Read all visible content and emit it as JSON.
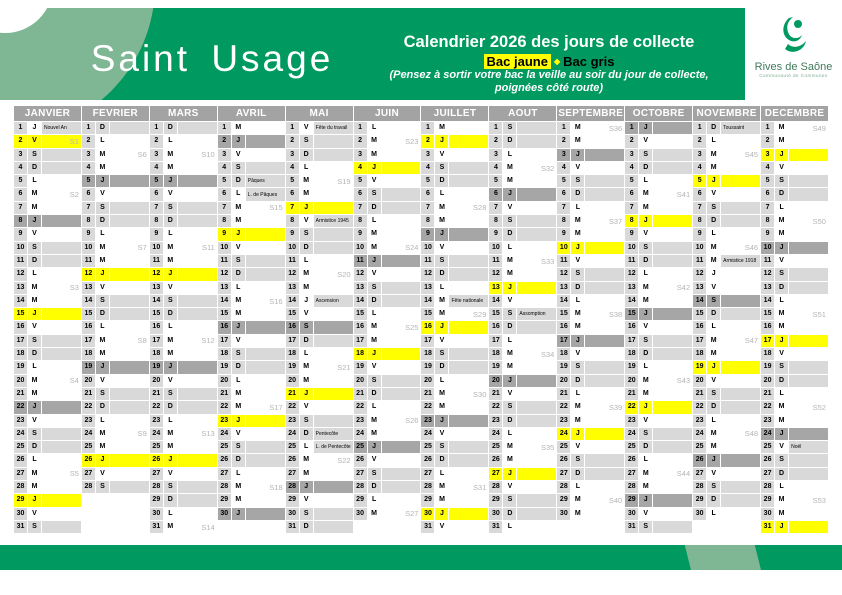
{
  "header": {
    "commune": "Saint Usage",
    "title": "Calendrier 2026 des jours de collecte",
    "legend_jaune": "Bac jaune",
    "legend_separator": "◆",
    "legend_gris": "Bac gris",
    "note_line1": "(Pensez à sortir votre bac la veille au soir du jour de collecte,",
    "note_line2": "poignées côté route)",
    "logo_name": "Rives de Saône",
    "logo_subtitle": "Communauté de Communes"
  },
  "colors": {
    "band_green": "#009a60",
    "light_green": "#7fb795",
    "bac_jaune_yellow": "#ffff00",
    "bac_gris_gray": "#a6a6a6",
    "weekend_gray": "#d9d9d9",
    "month_header_gray": "#a3a3a3"
  },
  "calendar": {
    "day_letters": [
      "L",
      "M",
      "M",
      "J",
      "V",
      "S",
      "D"
    ],
    "months": [
      {
        "name": "JANVIER",
        "days": 31,
        "start": 3,
        "jaune": [
          2,
          15,
          29
        ],
        "gris": [
          8,
          22
        ],
        "holidays": {
          "1": "Nouvel An"
        },
        "weeks": {
          "2": "S1",
          "6": "S2",
          "13": "S3",
          "20": "S4",
          "27": "S5"
        }
      },
      {
        "name": "FEVRIER",
        "days": 28,
        "start": 6,
        "jaune": [
          12,
          26
        ],
        "gris": [
          5,
          19
        ],
        "holidays": {},
        "weeks": {
          "3": "S6",
          "10": "S7",
          "17": "S8",
          "24": "S9"
        }
      },
      {
        "name": "MARS",
        "days": 31,
        "start": 6,
        "jaune": [
          12,
          26
        ],
        "gris": [
          5,
          19
        ],
        "holidays": {},
        "weeks": {
          "3": "S10",
          "10": "S11",
          "17": "S12",
          "24": "S13",
          "31": "S14"
        }
      },
      {
        "name": "AVRIL",
        "days": 30,
        "start": 2,
        "jaune": [
          9,
          23
        ],
        "gris": [
          2,
          16,
          30
        ],
        "holidays": {
          "5": "Pâques",
          "6": "L. de Pâques"
        },
        "weeks": {
          "7": "S15",
          "14": "S16",
          "22": "S17",
          "28": "S18"
        }
      },
      {
        "name": "MAI",
        "days": 31,
        "start": 4,
        "jaune": [
          7,
          21
        ],
        "gris": [
          16,
          28
        ],
        "holidays": {
          "1": "Fête du travail",
          "8": "Armistice 1945",
          "14": "Ascension",
          "24": "Pentecôte",
          "25": "L. de Pentecôte"
        },
        "weeks": {
          "5": "S19",
          "12": "S20",
          "19": "S21",
          "26": "S22"
        }
      },
      {
        "name": "JUIN",
        "days": 30,
        "start": 0,
        "jaune": [
          4,
          18
        ],
        "gris": [
          11,
          25
        ],
        "holidays": {},
        "weeks": {
          "2": "S23",
          "10": "S24",
          "16": "S25",
          "23": "S26",
          "30": "S27"
        }
      },
      {
        "name": "JUILLET",
        "days": 31,
        "start": 2,
        "jaune": [
          2,
          16,
          30
        ],
        "gris": [
          9,
          23
        ],
        "holidays": {
          "14": "Fête nationale"
        },
        "weeks": {
          "7": "S28",
          "15": "S29",
          "21": "S30",
          "28": "S31"
        }
      },
      {
        "name": "AOUT",
        "days": 31,
        "start": 5,
        "jaune": [
          13,
          27
        ],
        "gris": [
          6,
          20
        ],
        "holidays": {
          "15": "Assomption"
        },
        "weeks": {
          "4": "S32",
          "11": "S33",
          "18": "S34",
          "25": "S35"
        }
      },
      {
        "name": "SEPTEMBRE",
        "days": 30,
        "start": 1,
        "jaune": [
          10,
          24
        ],
        "gris": [
          3,
          17
        ],
        "holidays": {},
        "weeks": {
          "1": "S36",
          "8": "S37",
          "15": "S38",
          "22": "S39",
          "29": "S40"
        }
      },
      {
        "name": "OCTOBRE",
        "days": 31,
        "start": 3,
        "jaune": [
          8,
          22
        ],
        "gris": [
          1,
          15,
          29
        ],
        "holidays": {},
        "weeks": {
          "6": "S41",
          "13": "S42",
          "20": "S43",
          "27": "S44"
        }
      },
      {
        "name": "NOVEMBRE",
        "days": 30,
        "start": 6,
        "jaune": [
          5,
          19
        ],
        "gris": [
          14,
          26
        ],
        "holidays": {
          "1": "Toussaint",
          "11": "Armistice 1918"
        },
        "weeks": {
          "3": "S45",
          "10": "S46",
          "17": "S47",
          "24": "S48"
        }
      },
      {
        "name": "DECEMBRE",
        "days": 31,
        "start": 1,
        "jaune": [
          3,
          17,
          31
        ],
        "gris": [
          10,
          24
        ],
        "holidays": {
          "25": "Noël"
        },
        "weeks": {
          "1": "S49",
          "8": "S50",
          "15": "S51",
          "22": "S52",
          "29": "S53"
        }
      }
    ]
  }
}
